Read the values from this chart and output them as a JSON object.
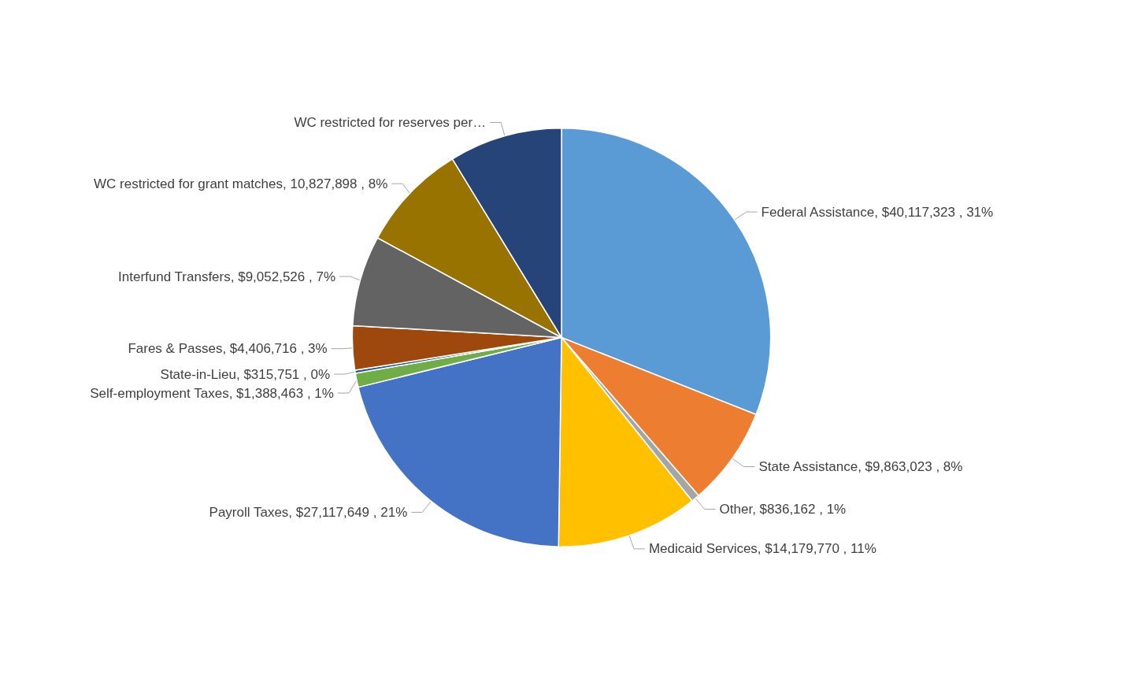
{
  "chart_data": {
    "type": "pie",
    "categories": [
      "Federal Assistance",
      "State Assistance",
      "Other",
      "Medicaid Services",
      "Payroll Taxes",
      "Self-employment Taxes",
      "State-in-Lieu",
      "Fares & Passes",
      "Interfund Transfers",
      "WC restricted for grant matches",
      "WC restricted for reserves per…"
    ],
    "values": [
      40117323,
      9863023,
      836162,
      14179770,
      27117649,
      1388463,
      315751,
      4406716,
      9052526,
      10827898,
      11300000
    ],
    "value_labels": [
      "$40,117,323 , 31%",
      "$9,863,023 , 8%",
      "$836,162 , 1%",
      "$14,179,770 , 11%",
      "$27,117,649 , 21%",
      "$1,388,463 , 1%",
      "$315,751 , 0%",
      "$4,406,716 , 3%",
      "$9,052,526 , 7%",
      "10,827,898 , 8%",
      null
    ],
    "colors": [
      "#5b9bd5",
      "#ed7d31",
      "#a5a5a5",
      "#ffc000",
      "#4472c4",
      "#70ad47",
      "#255e91",
      "#9e480e",
      "#636363",
      "#997300",
      "#264478"
    ],
    "legend": false
  }
}
